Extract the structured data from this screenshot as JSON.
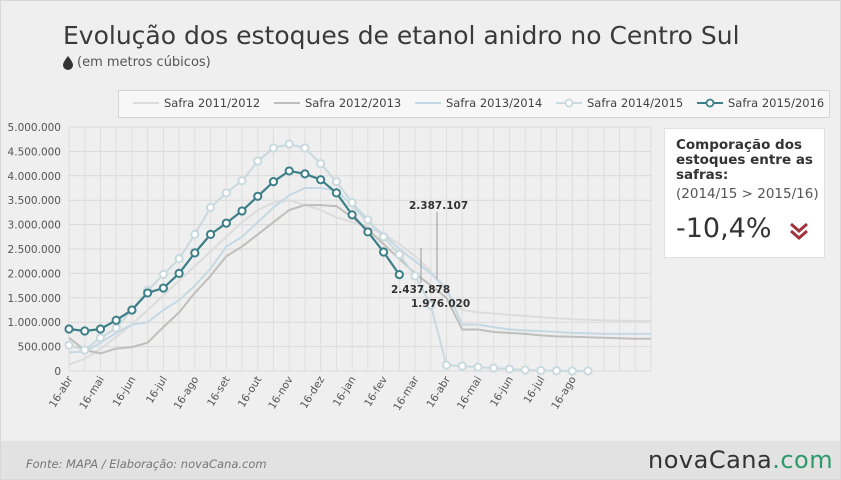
{
  "title": "Evolução dos estoques de etanol anidro no Centro Sul",
  "subtitle": "(em metros cúbicos)",
  "colors": {
    "s2011": "#dcdcdc",
    "s2012": "#c0bebb",
    "s2013": "#c5d9e4",
    "s2014": "#c9dadf",
    "s2015": "#3d7f88",
    "accent_red": "#a0333c",
    "brand_green": "#2e9a6a"
  },
  "info_box": {
    "title": "Comporação dos estoques entre as safras:",
    "subtitle": "(2014/15 > 2015/16)",
    "value": "-10,4%",
    "arrow_icon": "double-chevron-down-icon"
  },
  "footer": {
    "source": "Fonte: MAPA  / Elaboração: novaCana.com",
    "brand_a": "nova",
    "brand_b": "Cana",
    "brand_c": ".com"
  },
  "chart_data": {
    "type": "line",
    "ylim": [
      0,
      5000000
    ],
    "yticks": [
      "0",
      "500.000",
      "1.000.000",
      "1.500.000",
      "2.000.000",
      "2.500.000",
      "3.000.000",
      "3.500.000",
      "4.000.000",
      "4.500.000",
      "5.000.000"
    ],
    "x_tick_labels": [
      "16-abr",
      "16-mai",
      "16-jun",
      "16-jul",
      "16-ago",
      "16-set",
      "16-out",
      "16-nov",
      "16-dez",
      "16-jan",
      "16-fev",
      "16-mar",
      "16-abr",
      "16-mai",
      "16-jun",
      "16-jul",
      "16-ago"
    ],
    "annotations": [
      "2.387.107",
      "2.437.878",
      "1.976.020"
    ],
    "series": [
      {
        "name": "Safra 2011/2012",
        "color_key": "s2011",
        "markers": false,
        "values": [
          130000,
          250000,
          450000,
          700000,
          950000,
          1250000,
          1550000,
          1850000,
          2150000,
          2450000,
          2750000,
          3050000,
          3300000,
          3450000,
          3500000,
          3400000,
          3300000,
          3150000,
          3050000,
          2950000,
          2800000,
          2600000,
          2350000,
          2050000,
          1600000,
          1250000,
          1200000,
          1180000,
          1150000,
          1130000,
          1100000,
          1080000,
          1060000,
          1050000,
          1040000,
          1030000,
          1030000,
          1020000
        ]
      },
      {
        "name": "Safra 2012/2013",
        "color_key": "s2012",
        "markers": false,
        "values": [
          680000,
          430000,
          360000,
          460000,
          490000,
          580000,
          900000,
          1200000,
          1600000,
          1950000,
          2350000,
          2550000,
          2800000,
          3050000,
          3300000,
          3400000,
          3400000,
          3380000,
          3150000,
          2900000,
          2600000,
          2300000,
          2000000,
          1750000,
          1500000,
          850000,
          850000,
          800000,
          780000,
          760000,
          730000,
          710000,
          700000,
          690000,
          680000,
          670000,
          660000,
          660000
        ]
      },
      {
        "name": "Safra 2013/2014",
        "color_key": "s2013",
        "markers": false,
        "values": [
          380000,
          400000,
          580000,
          780000,
          950000,
          1000000,
          1250000,
          1450000,
          1750000,
          2100000,
          2550000,
          2750000,
          3050000,
          3350000,
          3600000,
          3750000,
          3750000,
          3700000,
          3400000,
          3050000,
          2800000,
          2500000,
          2250000,
          2000000,
          1700000,
          950000,
          950000,
          900000,
          850000,
          830000,
          820000,
          800000,
          780000,
          770000,
          760000,
          760000,
          760000,
          760000
        ]
      },
      {
        "name": "Safra 2014/2015",
        "color_key": "s2014",
        "markers": true,
        "values": [
          530000,
          430000,
          680000,
          880000,
          1250000,
          1650000,
          1980000,
          2300000,
          2800000,
          3350000,
          3650000,
          3900000,
          4300000,
          4570000,
          4650000,
          4570000,
          4250000,
          3880000,
          3450000,
          3100000,
          2750000,
          2387107,
          1950000,
          1350000,
          120000,
          100000,
          80000,
          60000,
          40000,
          20000,
          10000,
          5000,
          0,
          0
        ]
      },
      {
        "name": "Safra 2015/2016",
        "color_key": "s2015",
        "markers": true,
        "values": [
          860000,
          820000,
          860000,
          1040000,
          1250000,
          1600000,
          1700000,
          2000000,
          2420000,
          2800000,
          3030000,
          3280000,
          3580000,
          3880000,
          4100000,
          4040000,
          3920000,
          3650000,
          3200000,
          2850000,
          2437878,
          1976020
        ]
      }
    ]
  }
}
